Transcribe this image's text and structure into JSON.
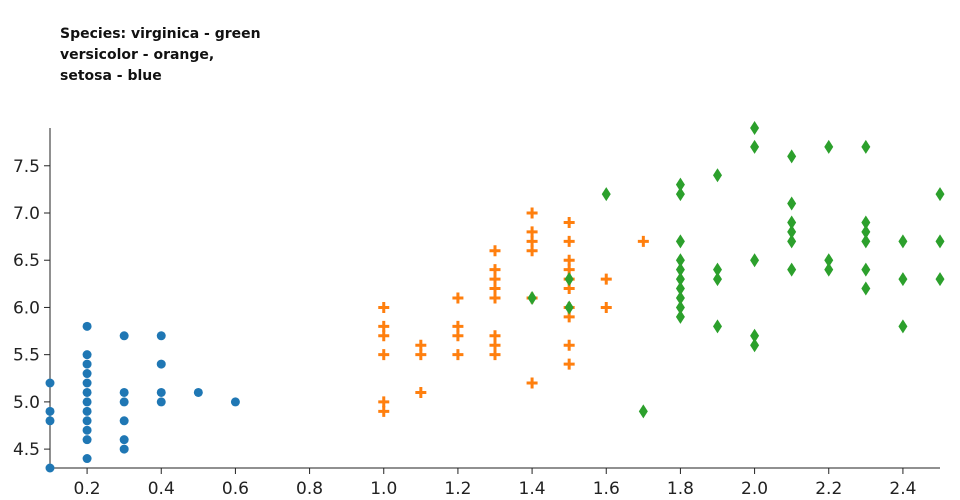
{
  "chart_data": {
    "type": "scatter",
    "title_lines": [
      "Species: virginica - green",
      "versicolor - orange,",
      "setosa - blue"
    ],
    "xlabel": "",
    "ylabel": "",
    "xlim": [
      0.1,
      2.5
    ],
    "ylim": [
      4.3,
      7.9
    ],
    "x_ticks": [
      "0.2",
      "0.4",
      "0.6",
      "0.8",
      "1.0",
      "1.2",
      "1.4",
      "1.6",
      "1.8",
      "2.0",
      "2.2",
      "2.4"
    ],
    "y_ticks": [
      "4.5",
      "5.0",
      "5.5",
      "6.0",
      "6.5",
      "7.0",
      "7.5"
    ],
    "grid": false,
    "series": [
      {
        "name": "setosa",
        "color": "#1f77b4",
        "marker": "circle",
        "points": [
          [
            0.1,
            4.3
          ],
          [
            0.1,
            4.8
          ],
          [
            0.1,
            4.9
          ],
          [
            0.1,
            5.2
          ],
          [
            0.2,
            4.4
          ],
          [
            0.2,
            4.6
          ],
          [
            0.2,
            4.7
          ],
          [
            0.2,
            4.8
          ],
          [
            0.2,
            4.9
          ],
          [
            0.2,
            5.0
          ],
          [
            0.2,
            5.1
          ],
          [
            0.2,
            5.2
          ],
          [
            0.2,
            5.3
          ],
          [
            0.2,
            5.4
          ],
          [
            0.2,
            5.5
          ],
          [
            0.2,
            5.8
          ],
          [
            0.3,
            4.5
          ],
          [
            0.3,
            4.6
          ],
          [
            0.3,
            4.8
          ],
          [
            0.3,
            5.0
          ],
          [
            0.3,
            5.1
          ],
          [
            0.3,
            5.7
          ],
          [
            0.4,
            5.0
          ],
          [
            0.4,
            5.1
          ],
          [
            0.4,
            5.4
          ],
          [
            0.4,
            5.7
          ],
          [
            0.5,
            5.1
          ],
          [
            0.6,
            5.0
          ]
        ]
      },
      {
        "name": "versicolor",
        "color": "#ff7f0e",
        "marker": "plus",
        "points": [
          [
            1.0,
            4.9
          ],
          [
            1.0,
            5.0
          ],
          [
            1.0,
            5.5
          ],
          [
            1.0,
            5.7
          ],
          [
            1.0,
            5.8
          ],
          [
            1.0,
            6.0
          ],
          [
            1.1,
            5.1
          ],
          [
            1.1,
            5.5
          ],
          [
            1.1,
            5.6
          ],
          [
            1.2,
            5.5
          ],
          [
            1.2,
            5.7
          ],
          [
            1.2,
            5.8
          ],
          [
            1.2,
            6.1
          ],
          [
            1.3,
            5.5
          ],
          [
            1.3,
            5.6
          ],
          [
            1.3,
            5.7
          ],
          [
            1.3,
            6.1
          ],
          [
            1.3,
            6.2
          ],
          [
            1.3,
            6.3
          ],
          [
            1.3,
            6.4
          ],
          [
            1.3,
            6.6
          ],
          [
            1.4,
            5.2
          ],
          [
            1.4,
            6.1
          ],
          [
            1.4,
            6.6
          ],
          [
            1.4,
            6.7
          ],
          [
            1.4,
            6.8
          ],
          [
            1.4,
            7.0
          ],
          [
            1.5,
            5.4
          ],
          [
            1.5,
            5.6
          ],
          [
            1.5,
            5.9
          ],
          [
            1.5,
            6.0
          ],
          [
            1.5,
            6.2
          ],
          [
            1.5,
            6.3
          ],
          [
            1.5,
            6.4
          ],
          [
            1.5,
            6.5
          ],
          [
            1.5,
            6.7
          ],
          [
            1.5,
            6.9
          ],
          [
            1.6,
            6.0
          ],
          [
            1.6,
            6.3
          ],
          [
            1.7,
            6.7
          ]
        ]
      },
      {
        "name": "virginica",
        "color": "#2ca02c",
        "marker": "diamond",
        "points": [
          [
            1.4,
            6.1
          ],
          [
            1.5,
            6.0
          ],
          [
            1.5,
            6.3
          ],
          [
            1.6,
            7.2
          ],
          [
            1.7,
            4.9
          ],
          [
            1.8,
            5.9
          ],
          [
            1.8,
            6.0
          ],
          [
            1.8,
            6.1
          ],
          [
            1.8,
            6.2
          ],
          [
            1.8,
            6.3
          ],
          [
            1.8,
            6.4
          ],
          [
            1.8,
            6.5
          ],
          [
            1.8,
            6.7
          ],
          [
            1.8,
            7.2
          ],
          [
            1.8,
            7.3
          ],
          [
            1.9,
            5.8
          ],
          [
            1.9,
            6.3
          ],
          [
            1.9,
            6.4
          ],
          [
            1.9,
            7.4
          ],
          [
            2.0,
            5.6
          ],
          [
            2.0,
            5.7
          ],
          [
            2.0,
            6.5
          ],
          [
            2.0,
            7.7
          ],
          [
            2.0,
            7.9
          ],
          [
            2.1,
            6.4
          ],
          [
            2.1,
            6.7
          ],
          [
            2.1,
            6.8
          ],
          [
            2.1,
            6.9
          ],
          [
            2.1,
            7.1
          ],
          [
            2.1,
            7.6
          ],
          [
            2.2,
            6.4
          ],
          [
            2.2,
            6.5
          ],
          [
            2.2,
            7.7
          ],
          [
            2.3,
            6.2
          ],
          [
            2.3,
            6.4
          ],
          [
            2.3,
            6.7
          ],
          [
            2.3,
            6.8
          ],
          [
            2.3,
            6.9
          ],
          [
            2.3,
            7.7
          ],
          [
            2.4,
            5.8
          ],
          [
            2.4,
            6.3
          ],
          [
            2.4,
            6.7
          ],
          [
            2.5,
            6.3
          ],
          [
            2.5,
            6.7
          ],
          [
            2.5,
            7.2
          ]
        ]
      }
    ]
  }
}
